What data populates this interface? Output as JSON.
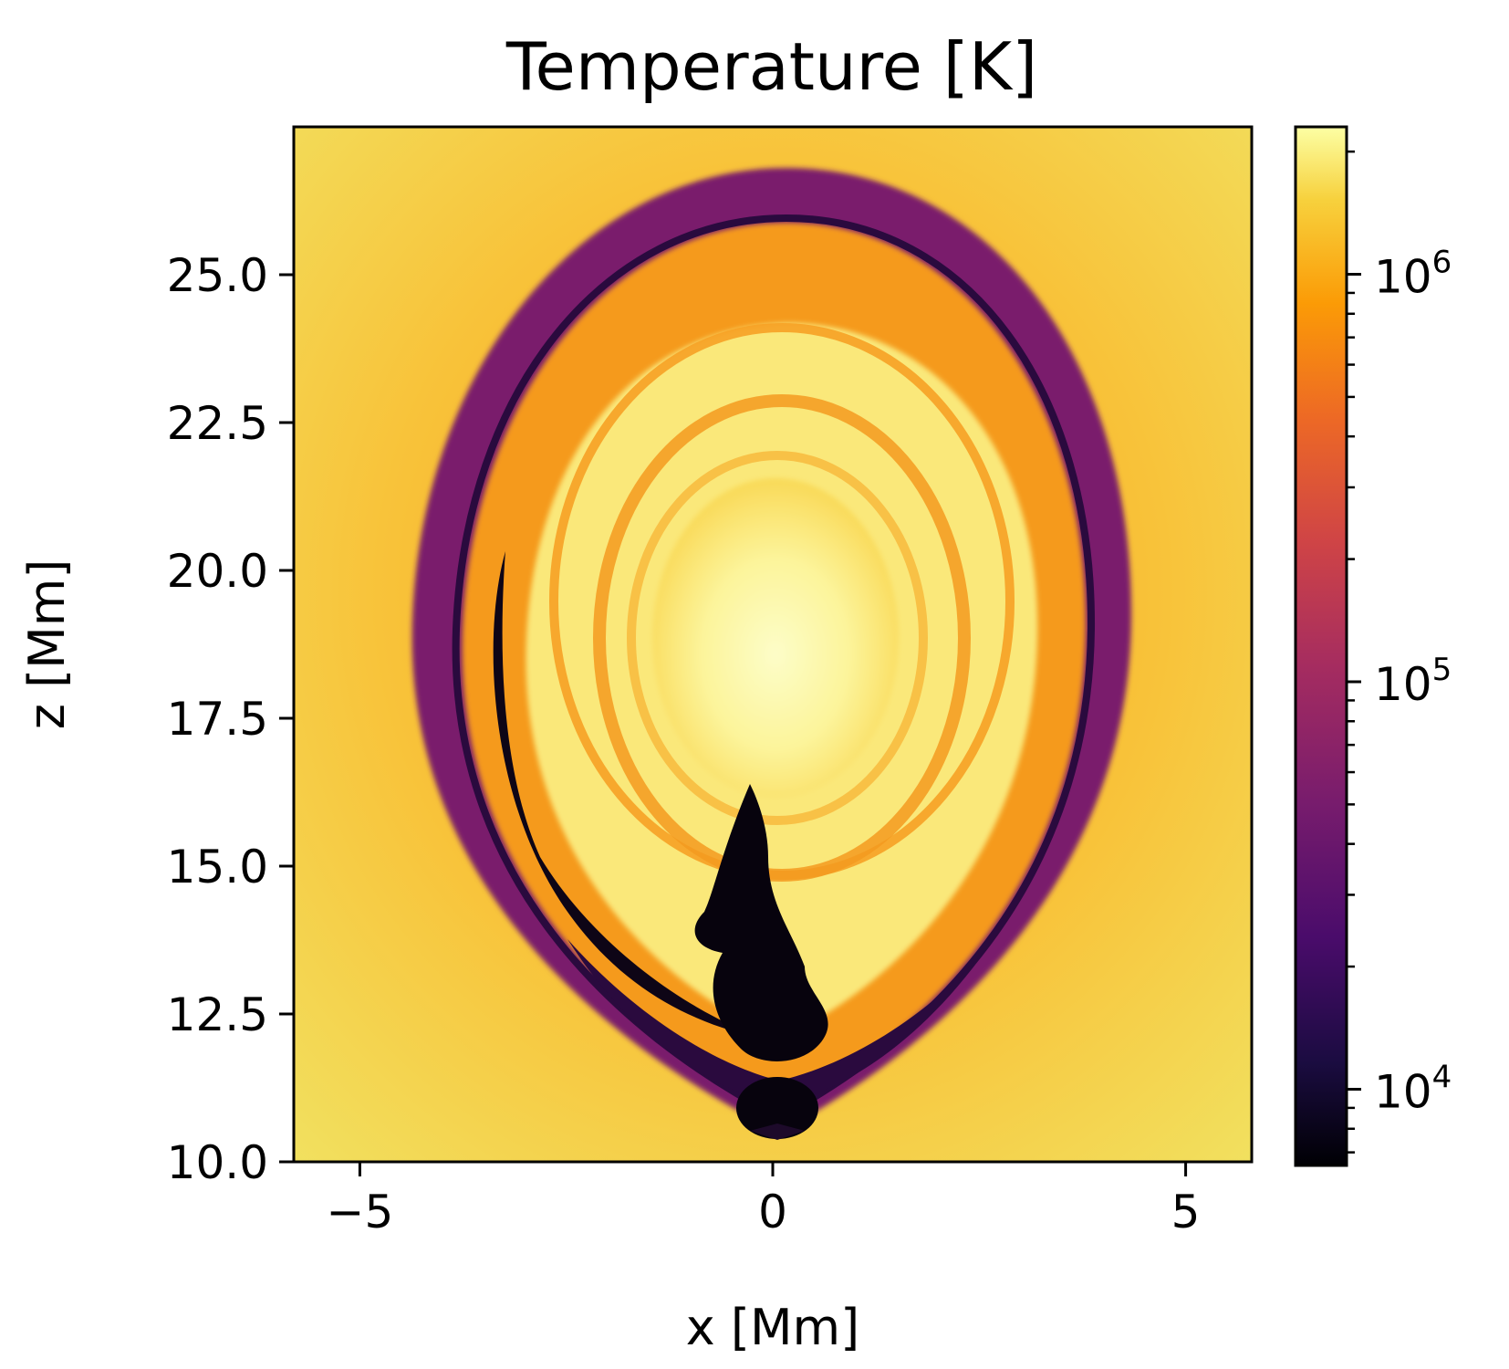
{
  "chart_data": {
    "type": "heatmap",
    "title": "Temperature [K]",
    "xlabel": "x [Mm]",
    "ylabel": "z [Mm]",
    "xlim": [
      -5.8,
      5.8
    ],
    "ylim": [
      10.0,
      27.5
    ],
    "x_ticks": [
      {
        "value": -5,
        "label": "−5"
      },
      {
        "value": 0,
        "label": "0"
      },
      {
        "value": 5,
        "label": "5"
      }
    ],
    "y_ticks": [
      {
        "value": 10.0,
        "label": "10.0"
      },
      {
        "value": 12.5,
        "label": "12.5"
      },
      {
        "value": 15.0,
        "label": "15.0"
      },
      {
        "value": 17.5,
        "label": "17.5"
      },
      {
        "value": 20.0,
        "label": "20.0"
      },
      {
        "value": 22.5,
        "label": "22.5"
      },
      {
        "value": 25.0,
        "label": "25.0"
      }
    ],
    "colorbar": {
      "colormap": "inferno",
      "scale": "log",
      "range": [
        6500,
        2300000
      ],
      "ticks": [
        {
          "value": 10000,
          "base": "10",
          "exp": "4"
        },
        {
          "value": 100000,
          "base": "10",
          "exp": "5"
        },
        {
          "value": 1000000,
          "base": "10",
          "exp": "6"
        }
      ]
    },
    "grid": false
  }
}
